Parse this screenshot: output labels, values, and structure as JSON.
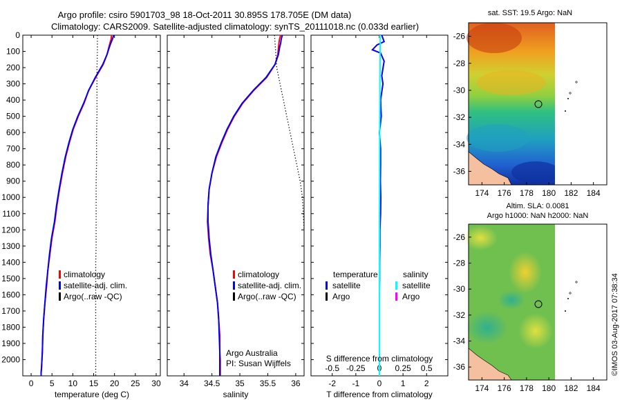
{
  "header": {
    "title_line1": "Argo profile: csiro 5901703_98 18-Oct-2011 30.895S 178.705E (DM data)",
    "title_line2": "Climatology: CARS2009. Satellite-adjusted climatology: synTS_20111018.nc (0.033d earlier)"
  },
  "footer": {
    "credit": "©IMOS 03-Aug-2017 07:38:34"
  },
  "colors": {
    "climatology": "#ff0000",
    "satellite": "#0000ff",
    "argo": "#000000",
    "salinity_satellite": "#00ffff",
    "salinity_argo": "#ff00ff"
  },
  "chart_data": [
    {
      "type": "line",
      "panel": "temperature",
      "xlabel": "temperature (deg C)",
      "ylabel": "",
      "xlim": [
        -2,
        31
      ],
      "ylim": [
        2100,
        0
      ],
      "xticks": [
        0,
        5,
        10,
        15,
        20,
        25,
        30
      ],
      "yticks": [
        0,
        100,
        200,
        300,
        400,
        500,
        600,
        700,
        800,
        900,
        1000,
        1100,
        1200,
        1300,
        1400,
        1500,
        1600,
        1700,
        1800,
        1900,
        2000
      ],
      "legend": [
        "climatology",
        "satellite-adj. clim.",
        "Argo(..raw -QC)"
      ],
      "series": [
        {
          "name": "climatology",
          "color": "#ff0000",
          "x": [
            19.3,
            19.2,
            18.9,
            18.6,
            18.2,
            17.3,
            15.5,
            13.8,
            12.7,
            11.3,
            10.1,
            9.2,
            8.3,
            7.5,
            6.8,
            6.2,
            5.7,
            5.0,
            4.5,
            4.0,
            3.7,
            3.3,
            3.0,
            2.8,
            2.7,
            2.6,
            2.5,
            2.4,
            2.4
          ],
          "y": [
            0,
            25,
            50,
            80,
            120,
            180,
            260,
            340,
            420,
            500,
            580,
            660,
            750,
            850,
            950,
            1050,
            1150,
            1250,
            1350,
            1450,
            1550,
            1650,
            1750,
            1850,
            1950,
            2000,
            2050,
            2080,
            2100
          ]
        },
        {
          "name": "satellite-adj. clim.",
          "color": "#0000ff",
          "x": [
            19.8,
            19.5,
            19.1,
            18.7,
            18.2,
            17.2,
            15.4,
            13.8,
            12.6,
            11.2,
            10.0,
            9.1,
            8.2,
            7.4,
            6.7,
            6.1,
            5.6,
            4.9,
            4.4,
            4.0,
            3.6,
            3.3,
            3.0,
            2.8,
            2.7,
            2.6,
            2.5,
            2.4,
            2.4
          ],
          "y": [
            0,
            25,
            50,
            80,
            120,
            180,
            260,
            340,
            420,
            500,
            580,
            660,
            750,
            850,
            950,
            1050,
            1150,
            1250,
            1350,
            1450,
            1550,
            1650,
            1750,
            1850,
            1950,
            2000,
            2050,
            2080,
            2100
          ]
        },
        {
          "name": "Argo(..raw -QC)",
          "color": "#000000",
          "dotted": true,
          "x": [
            15.9,
            15.9,
            15.8,
            15.8,
            15.8,
            15.8,
            15.7,
            15.7,
            15.7,
            15.6,
            15.6,
            15.6,
            15.6,
            15.6,
            15.5,
            15.5,
            15.5,
            15.5,
            15.5,
            15.5,
            15.5,
            15.5
          ],
          "y": [
            0,
            100,
            200,
            300,
            400,
            500,
            600,
            700,
            800,
            900,
            1000,
            1100,
            1200,
            1300,
            1400,
            1500,
            1600,
            1700,
            1800,
            1900,
            2000,
            2100
          ]
        }
      ]
    },
    {
      "type": "line",
      "panel": "salinity",
      "xlabel": "salinity",
      "ylabel": "",
      "xlim": [
        33.7,
        36.15
      ],
      "ylim": [
        2100,
        0
      ],
      "xticks": [
        34,
        34.5,
        35,
        35.5,
        36
      ],
      "legend": [
        "climatology",
        "satellite-adj. clim.",
        "Argo(..raw -QC)"
      ],
      "annotation": [
        "Argo Australia",
        "PI: Susan Wijffels"
      ],
      "series": [
        {
          "name": "climatology",
          "color": "#ff0000",
          "x": [
            35.73,
            35.71,
            35.7,
            35.69,
            35.68,
            35.63,
            35.48,
            35.25,
            35.05,
            34.9,
            34.78,
            34.68,
            34.58,
            34.5,
            34.45,
            34.43,
            34.42,
            34.44,
            34.47,
            34.52,
            34.56,
            34.6,
            34.62,
            34.64,
            34.64,
            34.65,
            34.65,
            34.65,
            34.65
          ],
          "y": [
            0,
            25,
            50,
            80,
            120,
            180,
            260,
            340,
            420,
            500,
            580,
            660,
            750,
            850,
            950,
            1050,
            1150,
            1250,
            1350,
            1450,
            1550,
            1650,
            1750,
            1850,
            1950,
            2000,
            2050,
            2080,
            2100
          ]
        },
        {
          "name": "satellite-adj. clim.",
          "color": "#0000ff",
          "x": [
            35.76,
            35.74,
            35.73,
            35.71,
            35.69,
            35.63,
            35.47,
            35.24,
            35.04,
            34.89,
            34.77,
            34.67,
            34.57,
            34.5,
            34.45,
            34.43,
            34.43,
            34.45,
            34.48,
            34.52,
            34.56,
            34.6,
            34.62,
            34.63,
            34.64,
            34.64,
            34.64,
            34.64,
            34.64
          ],
          "y": [
            0,
            25,
            50,
            80,
            120,
            180,
            260,
            340,
            420,
            500,
            580,
            660,
            750,
            850,
            950,
            1050,
            1150,
            1250,
            1350,
            1450,
            1550,
            1650,
            1750,
            1850,
            1950,
            2000,
            2050,
            2080,
            2100
          ]
        },
        {
          "name": "Argo(..raw -QC)",
          "color": "#000000",
          "dotted": true,
          "x": [
            35.62,
            35.64,
            35.66,
            35.72,
            35.78,
            35.84,
            35.9,
            35.96,
            36.02,
            36.08,
            36.12,
            36.15
          ],
          "y": [
            0,
            100,
            200,
            300,
            400,
            500,
            600,
            700,
            800,
            900,
            1000,
            1200
          ]
        }
      ]
    },
    {
      "type": "line",
      "panel": "difference",
      "xlabel": "T difference from climatology",
      "x2label": "S difference from climatology",
      "xlim": [
        -2.9,
        2.9
      ],
      "x2lim": [
        -0.725,
        0.725
      ],
      "ylim": [
        2100,
        0
      ],
      "xticks": [
        -2,
        -1,
        0,
        1,
        2
      ],
      "x2ticks": [
        -0.5,
        -0.25,
        0,
        0.25,
        0.5
      ],
      "legend": [
        "temperature",
        "satellite",
        "Argo",
        "salinity",
        "satellite",
        "Argo"
      ],
      "series": [
        {
          "name": "temperature satellite",
          "color": "#0000ff",
          "x": [
            0.1,
            0.2,
            -0.1,
            -0.3,
            0.05,
            0.2,
            0.1,
            0.15,
            0.05,
            0.08,
            0.0,
            0.05,
            0.05,
            0.04,
            0.06,
            0.05,
            0.02,
            0.02,
            0.01,
            0.01,
            0.0,
            0.0,
            0.0,
            0.0,
            0.0,
            0.0,
            0.0
          ],
          "y": [
            0,
            40,
            60,
            90,
            110,
            160,
            250,
            300,
            400,
            500,
            600,
            700,
            800,
            900,
            1000,
            1100,
            1200,
            1300,
            1400,
            1500,
            1600,
            1700,
            1800,
            1900,
            2000,
            2050,
            2100
          ]
        },
        {
          "name": "salinity satellite",
          "color": "#00ffff",
          "x": [
            0.03,
            0.035,
            0.03,
            0.025,
            0.02,
            0.02,
            0.015,
            0.01,
            0.01,
            0.01,
            0.005,
            0.005,
            0.0,
            0.0,
            0.0,
            0.0,
            0.0,
            0.0,
            0.0,
            0.0
          ],
          "y": [
            0,
            50,
            100,
            200,
            300,
            400,
            500,
            600,
            700,
            800,
            900,
            1000,
            1100,
            1200,
            1400,
            1600,
            1800,
            1900,
            2000,
            2100
          ]
        }
      ]
    }
  ],
  "maps": {
    "sst": {
      "title": "sat. SST: 19.5 Argo: NaN",
      "xticks": [
        "174",
        "176",
        "178",
        "180",
        "182",
        "184"
      ],
      "yticks": [
        "-26",
        "-28",
        "-30",
        "-32",
        "-34",
        "-36"
      ]
    },
    "sla": {
      "title_line1": "Altim. SLA: 0.0081",
      "title_line2": "Argo h1000: NaN h2000: NaN",
      "xticks": [
        "174",
        "176",
        "178",
        "180",
        "182",
        "184"
      ],
      "yticks": [
        "-26",
        "-28",
        "-30",
        "-32",
        "-34",
        "-36"
      ]
    }
  },
  "legend_labels": {
    "climatology": "climatology",
    "satellite_adj": "satellite-adj. clim.",
    "argo_raw": "Argo(..raw -QC)",
    "temperature": "temperature",
    "salinity": "salinity",
    "satellite": "satellite",
    "argo": "Argo"
  }
}
